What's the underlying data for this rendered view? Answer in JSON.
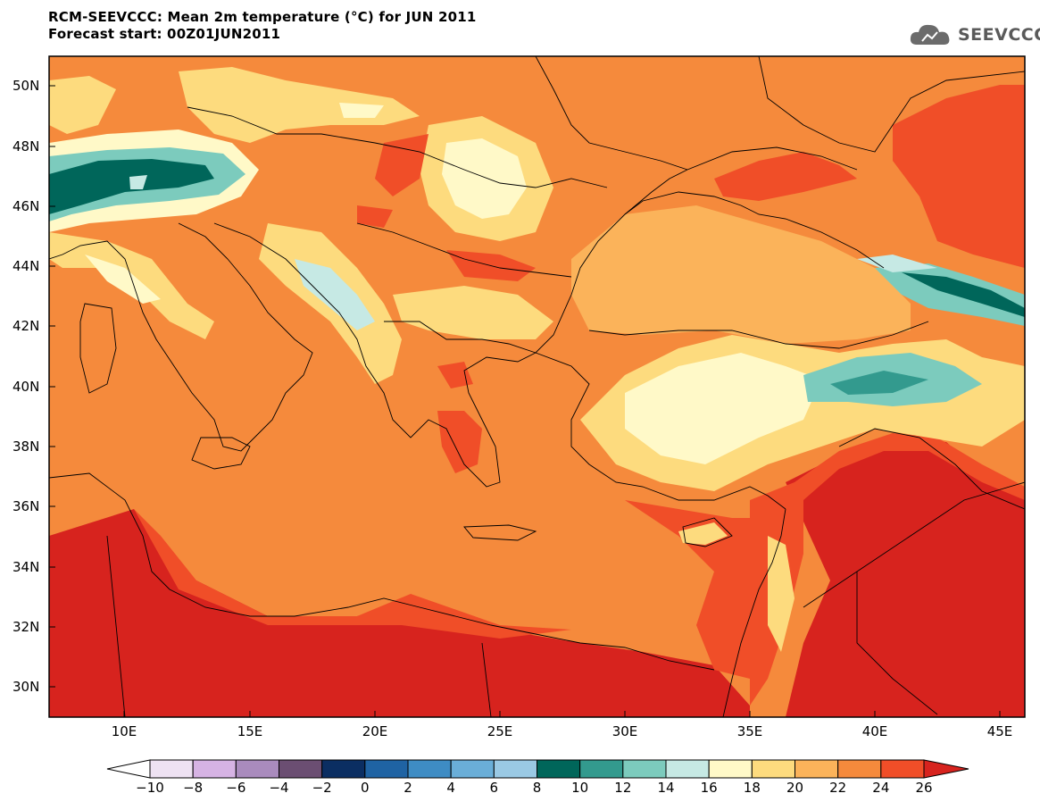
{
  "title": "RCM-SEEVCCC: Mean 2m temperature (°C) for JUN 2011",
  "subtitle": "Forecast start: 00Z01JUN2011",
  "logo": {
    "text": "SEEVCCC",
    "icon": "cloud-icon"
  },
  "map": {
    "lat_labels": [
      "50N",
      "48N",
      "46N",
      "44N",
      "42N",
      "40N",
      "38N",
      "36N",
      "34N",
      "32N",
      "30N"
    ],
    "lon_labels": [
      "10E",
      "15E",
      "20E",
      "25E",
      "30E",
      "35E",
      "40E",
      "45E"
    ],
    "variable": "Mean 2m temperature",
    "units": "°C"
  },
  "colorbar": {
    "labels": [
      "−10",
      "−8",
      "−6",
      "−4",
      "−2",
      "0",
      "2",
      "4",
      "6",
      "8",
      "10",
      "12",
      "14",
      "16",
      "18",
      "20",
      "22",
      "24",
      "26"
    ],
    "colors": [
      "#ffffff",
      "#eee2f3",
      "#d6b3e4",
      "#a98bbd",
      "#6b4e72",
      "#0b2e62",
      "#1f63a3",
      "#3e8cc4",
      "#6aaed8",
      "#9ac9e4",
      "#00665a",
      "#339a8e",
      "#7ccbbd",
      "#c6e9e4",
      "#fff9c8",
      "#fddb7e",
      "#fbb35a",
      "#f58a3c",
      "#f04e28",
      "#d7231e"
    ]
  }
}
